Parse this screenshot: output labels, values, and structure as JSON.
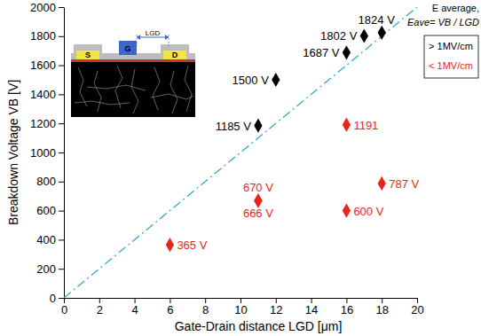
{
  "chart_data": {
    "type": "scatter",
    "x_label": "Gate-Drain distance LGD [μm]",
    "y_label": "Breakdown Voltage VB [V]",
    "xlim": [
      0,
      20
    ],
    "xticks": [
      0,
      2,
      4,
      6,
      8,
      10,
      12,
      14,
      16,
      18,
      20
    ],
    "ylim": [
      0,
      2000
    ],
    "yticks": [
      0,
      200,
      400,
      600,
      800,
      1000,
      1200,
      1400,
      1600,
      1800,
      2000
    ],
    "grid": false,
    "legend": "top-right",
    "legend_title": [
      "E average,",
      "Eave= VB / LGD"
    ],
    "data_labels": true,
    "annotations": [
      "S",
      "G",
      "D",
      "LGD"
    ],
    "reference_line": {
      "x": [
        0,
        20
      ],
      "values": [
        0,
        2000
      ],
      "color": "#33a9c9",
      "line_style": "dashdot"
    },
    "series": [
      {
        "name": "> 1MV/cm",
        "color": "#000000",
        "marker": "diamond",
        "x": [
          11,
          12,
          16,
          17,
          18
        ],
        "values": [
          1185,
          1500,
          1687,
          1802,
          1824
        ],
        "value_labels": [
          "1185 V",
          "1500 V",
          "1687 V",
          "1802 V",
          "1824 V"
        ]
      },
      {
        "name": "< 1MV/cm",
        "color": "#e8261c",
        "marker": "diamond",
        "x": [
          6,
          11,
          11,
          16,
          16,
          18
        ],
        "values": [
          365,
          670,
          666,
          1191,
          600,
          787
        ],
        "value_labels": [
          "365 V",
          "670 V",
          "666 V",
          "1191",
          "600 V",
          "787 V"
        ]
      }
    ]
  }
}
